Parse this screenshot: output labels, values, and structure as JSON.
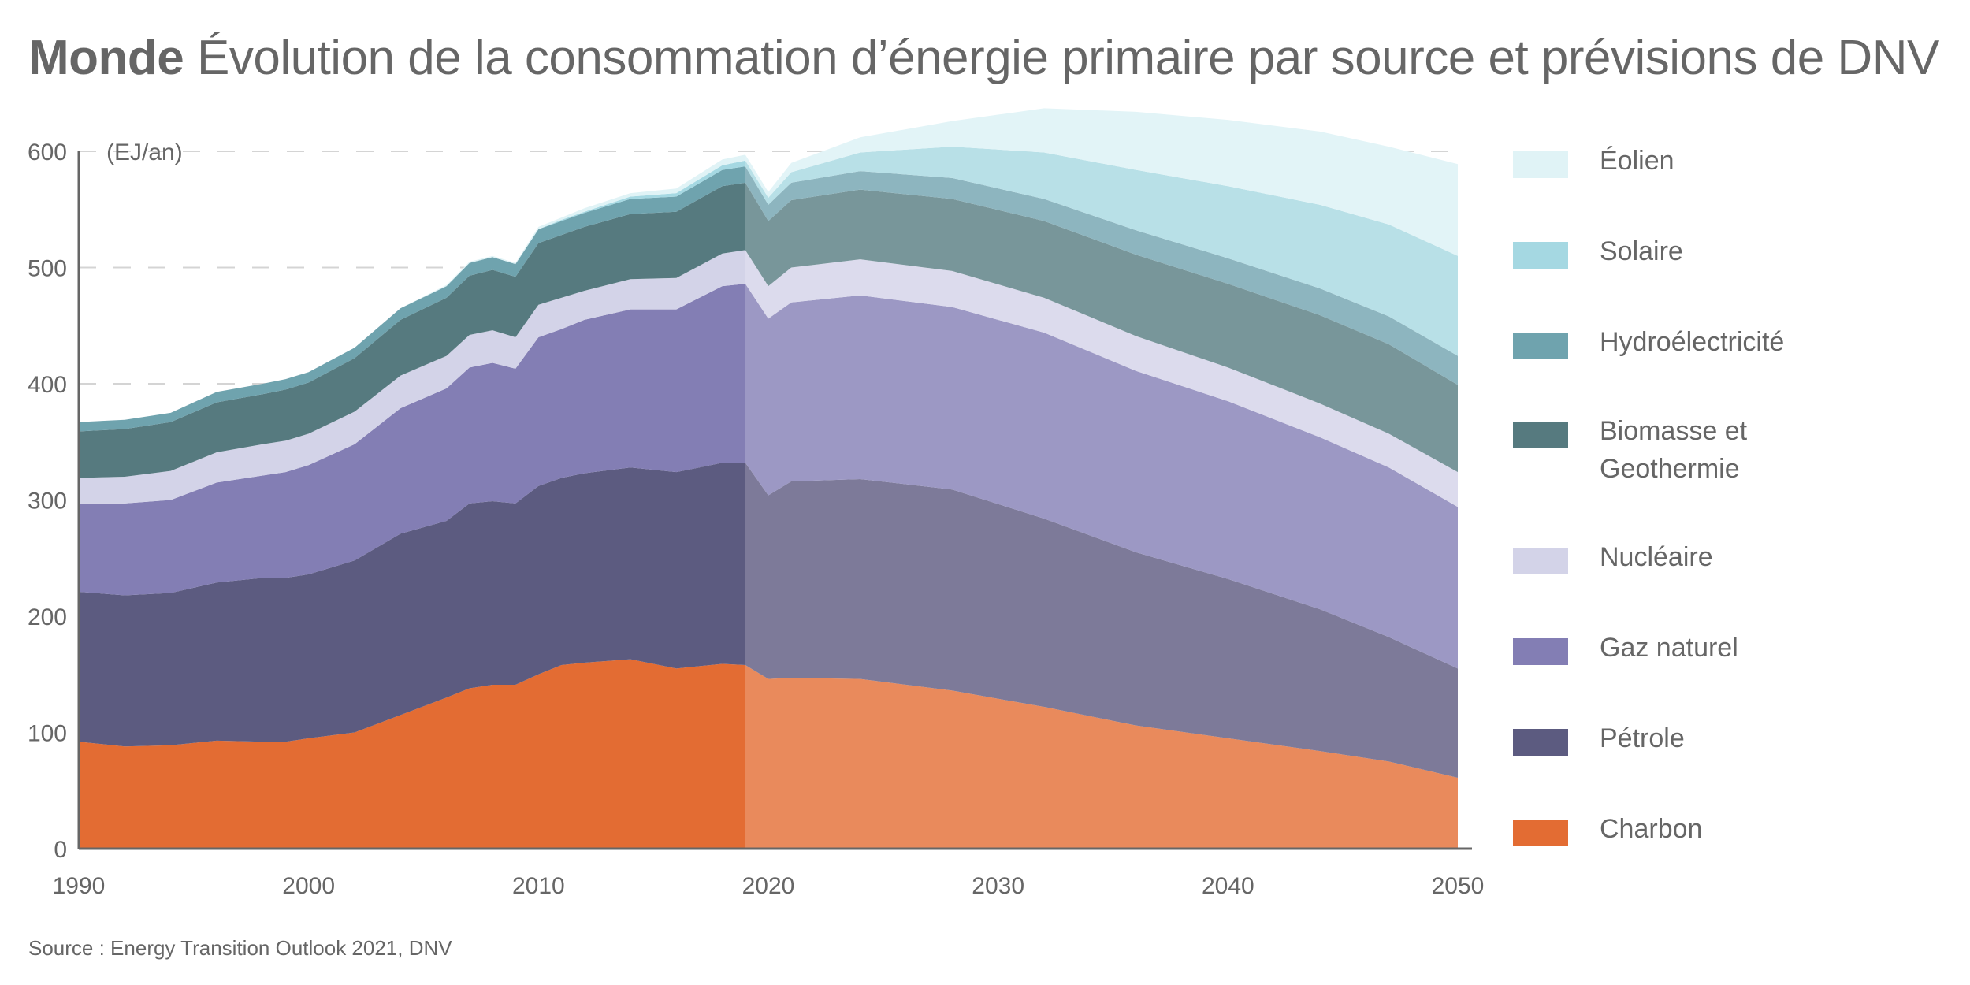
{
  "title": {
    "bold": "Monde",
    "rest": "Évolution de la consommation d’énergie primaire par source et prévisions de DNV"
  },
  "source": "Source : Energy Transition Outlook 2021, DNV",
  "chart_data": {
    "type": "area",
    "stacked": true,
    "title": "Monde Évolution de la consommation d’énergie primaire par source et prévisions de DNV",
    "unit_label": "(EJ/an)",
    "xlabel": "",
    "ylabel": "(EJ/an)",
    "xlim": [
      1990,
      2050
    ],
    "ylim": [
      0,
      600
    ],
    "x_ticks": [
      "1990",
      "2000",
      "2010",
      "2020",
      "2030",
      "2040",
      "2050"
    ],
    "y_ticks": [
      "0",
      "100",
      "200",
      "300",
      "400",
      "500",
      "600"
    ],
    "grid": "horizontal-dashed",
    "forecast_start": 2019,
    "legend_position": "right",
    "x": [
      1990,
      1992,
      1994,
      1996,
      1998,
      1999,
      2000,
      2002,
      2004,
      2006,
      2007,
      2008,
      2009,
      2010,
      2011,
      2012,
      2014,
      2016,
      2018,
      2019,
      2020,
      2021,
      2024,
      2028,
      2032,
      2036,
      2040,
      2044,
      2047,
      2050
    ],
    "series": [
      {
        "name": "Charbon",
        "color": "#e36c33",
        "forecast_color": "#e98a5c",
        "values": [
          92,
          88,
          89,
          93,
          92,
          92,
          95,
          100,
          115,
          130,
          138,
          141,
          141,
          150,
          158,
          160,
          163,
          155,
          159,
          158,
          146,
          147,
          146,
          136,
          122,
          106,
          95,
          84,
          75,
          61
        ]
      },
      {
        "name": "Pétrole",
        "color": "#5c5b80",
        "forecast_color": "#7d7a99",
        "values": [
          129,
          130,
          131,
          136,
          141,
          141,
          141,
          148,
          156,
          152,
          159,
          158,
          156,
          162,
          161,
          163,
          165,
          169,
          173,
          174,
          158,
          169,
          172,
          173,
          162,
          149,
          137,
          122,
          107,
          94
        ]
      },
      {
        "name": "Gaz naturel",
        "color": "#837eb4",
        "forecast_color": "#9c98c4",
        "values": [
          76,
          79,
          80,
          86,
          88,
          91,
          94,
          100,
          108,
          114,
          117,
          119,
          116,
          128,
          128,
          132,
          136,
          140,
          152,
          154,
          152,
          154,
          158,
          157,
          160,
          156,
          153,
          148,
          146,
          139
        ]
      },
      {
        "name": "Nucléaire",
        "color": "#d3d3e8",
        "forecast_color": "#dcdbed",
        "values": [
          22,
          23,
          25,
          26,
          27,
          27,
          27,
          28,
          28,
          28,
          28,
          28,
          27,
          28,
          27,
          25,
          26,
          27,
          28,
          29,
          28,
          30,
          31,
          31,
          30,
          30,
          29,
          29,
          29,
          30
        ]
      },
      {
        "name": "Biomasse et Geothermie",
        "color": "#567a7f",
        "forecast_color": "#78969a",
        "values": [
          40,
          41,
          42,
          43,
          43,
          44,
          44,
          46,
          48,
          50,
          51,
          52,
          52,
          53,
          54,
          55,
          56,
          57,
          58,
          58,
          56,
          58,
          60,
          62,
          66,
          70,
          72,
          76,
          77,
          75
        ]
      },
      {
        "name": "Hydroélectricité",
        "color": "#6fa3ae",
        "forecast_color": "#8db5bf",
        "values": [
          8,
          8,
          8,
          9,
          9,
          9,
          9,
          9,
          10,
          10,
          11,
          11,
          11,
          12,
          12,
          12,
          13,
          13,
          14,
          14,
          14,
          15,
          16,
          18,
          19,
          21,
          22,
          23,
          24,
          25
        ]
      },
      {
        "name": "Solaire",
        "color": "#a5d8e2",
        "forecast_color": "#b8e0e7",
        "values": [
          0,
          0,
          0,
          0,
          0,
          0,
          0,
          0,
          0,
          0,
          0,
          0,
          0,
          0,
          1,
          1,
          2,
          3,
          4,
          5,
          6,
          9,
          16,
          27,
          40,
          52,
          62,
          72,
          79,
          86
        ]
      },
      {
        "name": "Éolien",
        "color": "#e0f3f6",
        "forecast_color": "#e2f4f7",
        "values": [
          0,
          0,
          0,
          0,
          0,
          0,
          0,
          0,
          0,
          1,
          1,
          1,
          1,
          2,
          2,
          3,
          3,
          4,
          5,
          5,
          5,
          8,
          13,
          22,
          38,
          50,
          57,
          63,
          67,
          79
        ]
      }
    ]
  },
  "legend": [
    {
      "label": "Éolien",
      "color": "#e0f3f6"
    },
    {
      "label": "Solaire",
      "color": "#a5d8e2"
    },
    {
      "label": "Hydroélectricité",
      "color": "#6fa3ae"
    },
    {
      "label": "Biomasse et Geothermie",
      "color": "#567a7f"
    },
    {
      "label": "Nucléaire",
      "color": "#d3d3e8"
    },
    {
      "label": "Gaz naturel",
      "color": "#837eb4"
    },
    {
      "label": "Pétrole",
      "color": "#5c5b80"
    },
    {
      "label": "Charbon",
      "color": "#e36c33"
    }
  ]
}
